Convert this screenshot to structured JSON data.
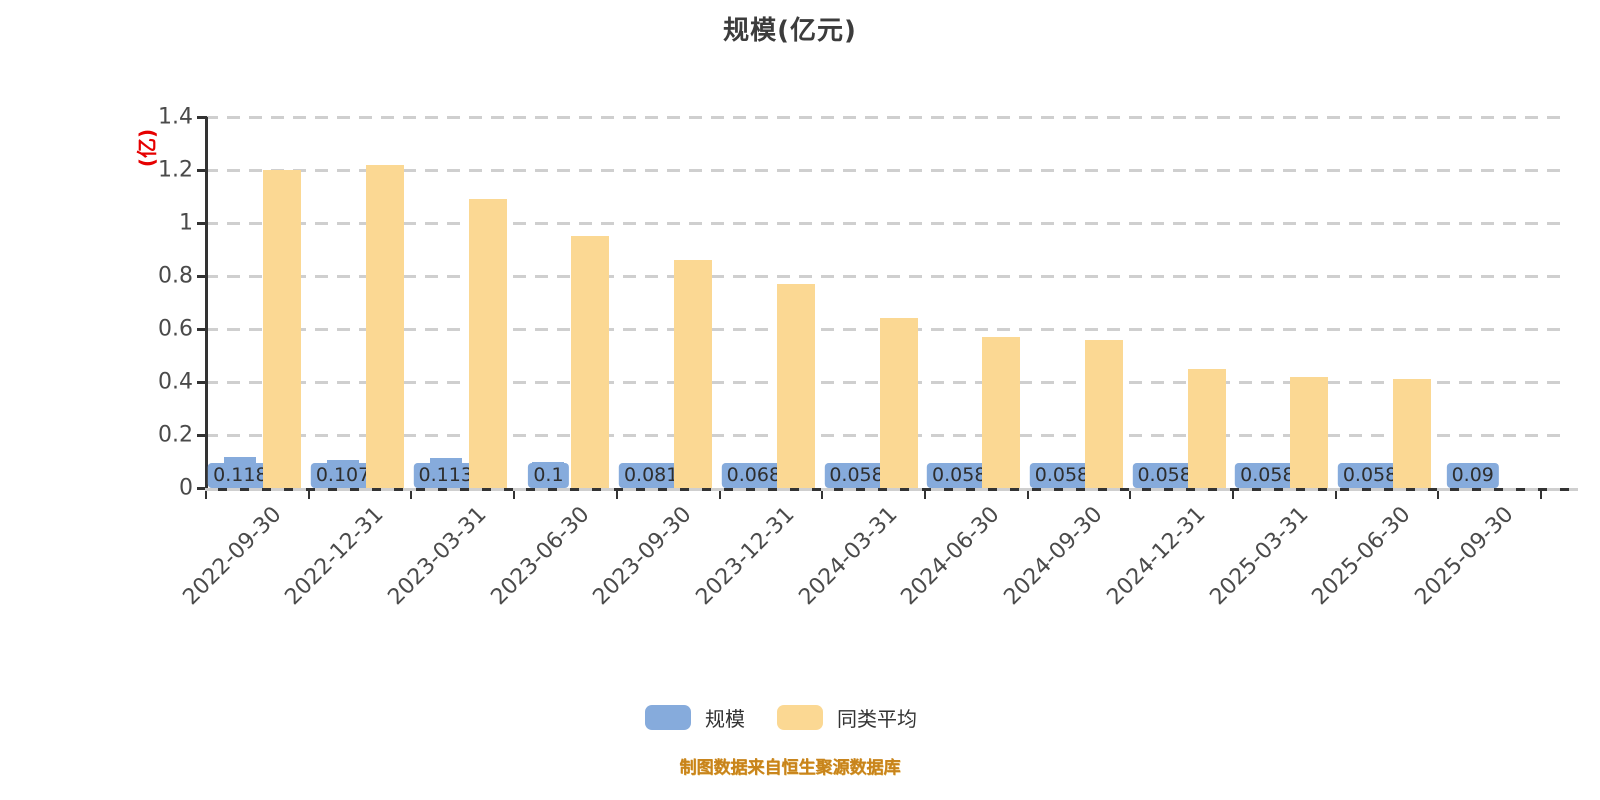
{
  "title": "规模(亿元)",
  "y_axis_unit_label": "(亿)",
  "footer_note": "制图数据来自恒生聚源数据库",
  "colors": {
    "scale_series": "#86abdc",
    "average_series": "#fbd893",
    "grid": "#cfcfcf",
    "axis": "#333333",
    "axis_text": "#4a4a4a",
    "title_text": "#3c3c3c",
    "unit_text": "#e60000",
    "footer_text": "#c8841c"
  },
  "legend": {
    "items": [
      {
        "label": "规模",
        "color": "#86abdc"
      },
      {
        "label": "同类平均",
        "color": "#fbd893"
      }
    ]
  },
  "chart_data": {
    "type": "bar",
    "title": "规模(亿元)",
    "xlabel": "",
    "ylabel": "(亿)",
    "ylim": [
      0,
      1.4
    ],
    "ytick_step": 0.2,
    "ytick_labels": [
      "0",
      "0.2",
      "0.4",
      "0.6",
      "0.8",
      "1",
      "1.2",
      "1.4"
    ],
    "grid": "dashed-horizontal",
    "legend_position": "bottom",
    "categories": [
      "2022-09-30",
      "2022-12-31",
      "2023-03-31",
      "2023-06-30",
      "2023-09-30",
      "2023-12-31",
      "2024-03-31",
      "2024-06-30",
      "2024-09-30",
      "2024-12-31",
      "2025-03-31",
      "2025-06-30",
      "2025-09-30"
    ],
    "series": [
      {
        "name": "规模",
        "color": "#86abdc",
        "values": [
          0.118,
          0.107,
          0.113,
          0.1,
          0.081,
          0.068,
          0.058,
          0.058,
          0.058,
          0.058,
          0.058,
          0.058,
          0.09
        ],
        "labels": [
          "0.118",
          "0.107",
          "0.113",
          "0.1",
          "0.081",
          "0.068",
          "0.058",
          "0.058",
          "0.058",
          "0.058",
          "0.058",
          "0.058",
          "0.09"
        ],
        "labels_shown": true
      },
      {
        "name": "同类平均",
        "color": "#fbd893",
        "values": [
          1.2,
          1.22,
          1.09,
          0.95,
          0.86,
          0.77,
          0.64,
          0.57,
          0.56,
          0.45,
          0.42,
          0.41,
          null
        ],
        "labels_shown": false
      }
    ]
  }
}
